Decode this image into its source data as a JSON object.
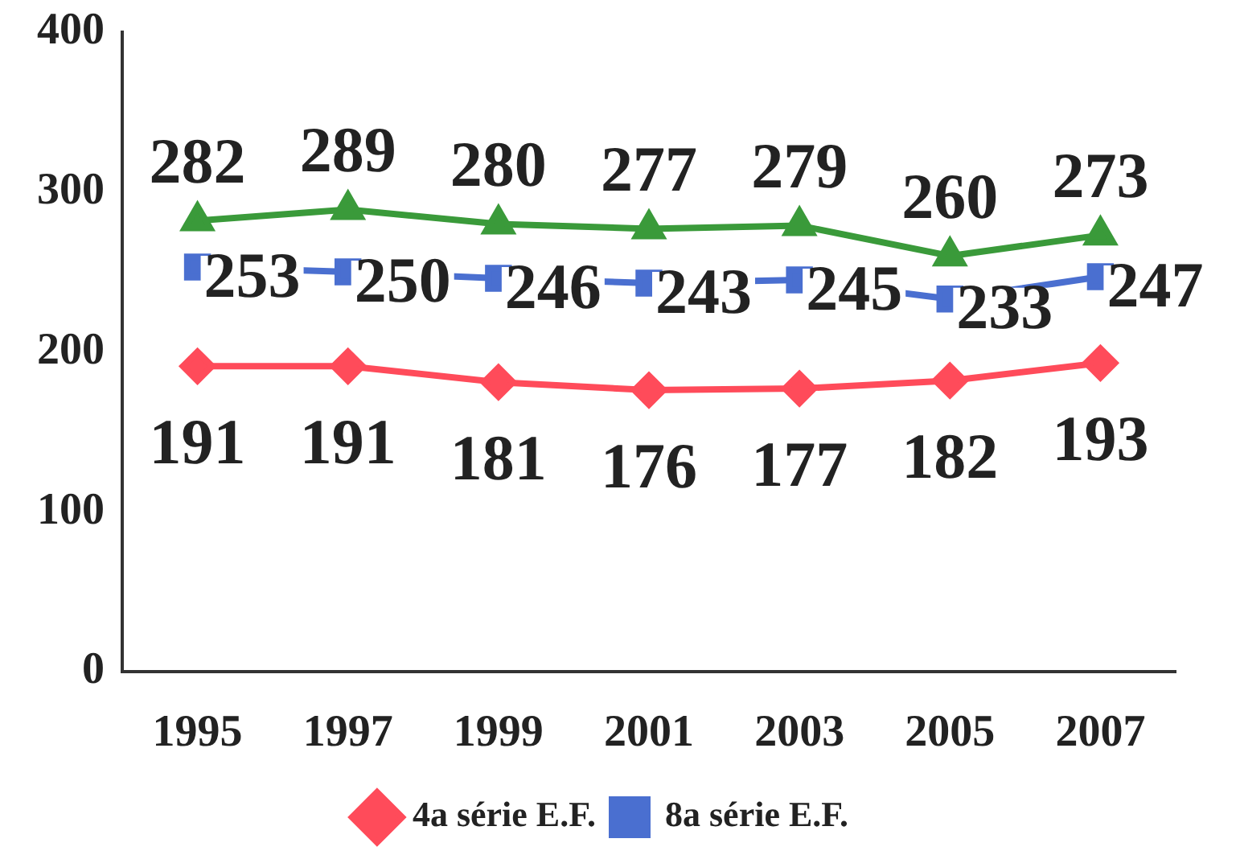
{
  "chart_data": {
    "type": "line",
    "categories": [
      "1995",
      "1997",
      "1999",
      "2001",
      "2003",
      "2005",
      "2007"
    ],
    "series": [
      {
        "name": "4a série E.F.",
        "color": "#ff4b5a",
        "marker": "diamond",
        "values": [
          191,
          191,
          181,
          176,
          177,
          182,
          193
        ]
      },
      {
        "name": "8a série E.F.",
        "color": "#4a6fd0",
        "marker": "square",
        "values": [
          253,
          250,
          246,
          243,
          245,
          233,
          247
        ]
      },
      {
        "color": "#3a9a3a",
        "marker": "triangle",
        "values": [
          282,
          289,
          280,
          277,
          279,
          260,
          273
        ]
      }
    ],
    "ylim": [
      0,
      400
    ],
    "yticks": [
      0,
      100,
      200,
      300,
      400
    ],
    "grid": false,
    "legend": "bottom",
    "data_labels": true
  }
}
